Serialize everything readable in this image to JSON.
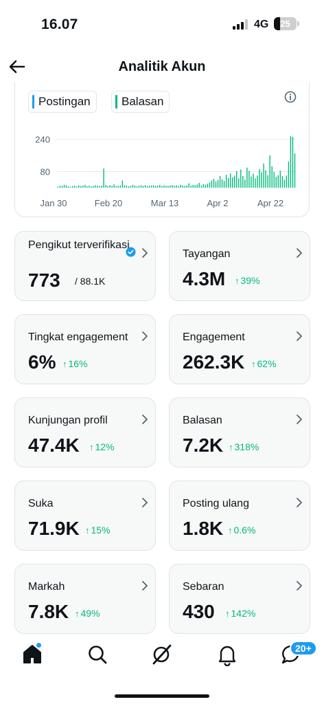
{
  "status_bar": {
    "time": "16.07",
    "network": "4G",
    "battery": "25"
  },
  "header": {
    "title": "Analitik Akun"
  },
  "legend": {
    "posts": "Postingan",
    "replies": "Balasan",
    "posts_color": "#1d9bf0",
    "replies_color": "#00ba7c"
  },
  "chart_data": {
    "type": "bar",
    "series": [
      {
        "name": "Balasan",
        "color": "#00ba7c"
      }
    ],
    "y_ticks": [
      "240",
      "80"
    ],
    "y_tick_values": [
      240,
      80
    ],
    "x_ticks": [
      "Jan 30",
      "Feb 20",
      "Mar 13",
      "Apr 2",
      "Apr 22"
    ],
    "ylim": [
      0,
      300
    ],
    "values": [
      6,
      10,
      9,
      14,
      12,
      7,
      5,
      8,
      10,
      6,
      12,
      9,
      11,
      14,
      8,
      10,
      7,
      9,
      12,
      10,
      8,
      11,
      95,
      14,
      9,
      12,
      10,
      16,
      8,
      9,
      11,
      36,
      12,
      10,
      7,
      9,
      14,
      11,
      8,
      10,
      12,
      9,
      13,
      8,
      10,
      11,
      12,
      9,
      10,
      14,
      8,
      12,
      10,
      9,
      11,
      13,
      10,
      12,
      8,
      14,
      11,
      9,
      12,
      22,
      10,
      14,
      12,
      16,
      24,
      10,
      18,
      15,
      20,
      26,
      36,
      44,
      30,
      38,
      58,
      42,
      34,
      64,
      48,
      70,
      52,
      60,
      82,
      46,
      90,
      58,
      40,
      100,
      84,
      56,
      70,
      46,
      60,
      92,
      76,
      120,
      86,
      62,
      160,
      106,
      78,
      54,
      62,
      84,
      58,
      40,
      60,
      130,
      256,
      252,
      170
    ]
  },
  "cards": [
    {
      "title": "Pengikut terverifikasi",
      "value": "773",
      "total": "/ 88.1K",
      "delta": ""
    },
    {
      "title": "Tayangan",
      "value": "4.3M",
      "delta": "39%"
    },
    {
      "title": "Tingkat engagement",
      "value": "6%",
      "delta": "16%"
    },
    {
      "title": "Engagement",
      "value": "262.3K",
      "delta": "62%"
    },
    {
      "title": "Kunjungan profil",
      "value": "47.4K",
      "delta": "12%"
    },
    {
      "title": "Balasan",
      "value": "7.2K",
      "delta": "318%"
    },
    {
      "title": "Suka",
      "value": "71.9K",
      "delta": "15%"
    },
    {
      "title": "Posting ulang",
      "value": "1.8K",
      "delta": "0.6%"
    },
    {
      "title": "Markah",
      "value": "7.8K",
      "delta": "49%"
    },
    {
      "title": "Sebaran",
      "value": "430",
      "delta": "142%"
    }
  ],
  "tabbar": {
    "messages_badge": "20+",
    "items": [
      "home-icon",
      "search-icon",
      "grok-icon",
      "bell-icon",
      "messages-icon"
    ]
  },
  "colors": {
    "accent": "#1d9bf0",
    "positive": "#00ba7c",
    "card_bg": "#f7f8f8",
    "border": "#dfe3e6"
  }
}
